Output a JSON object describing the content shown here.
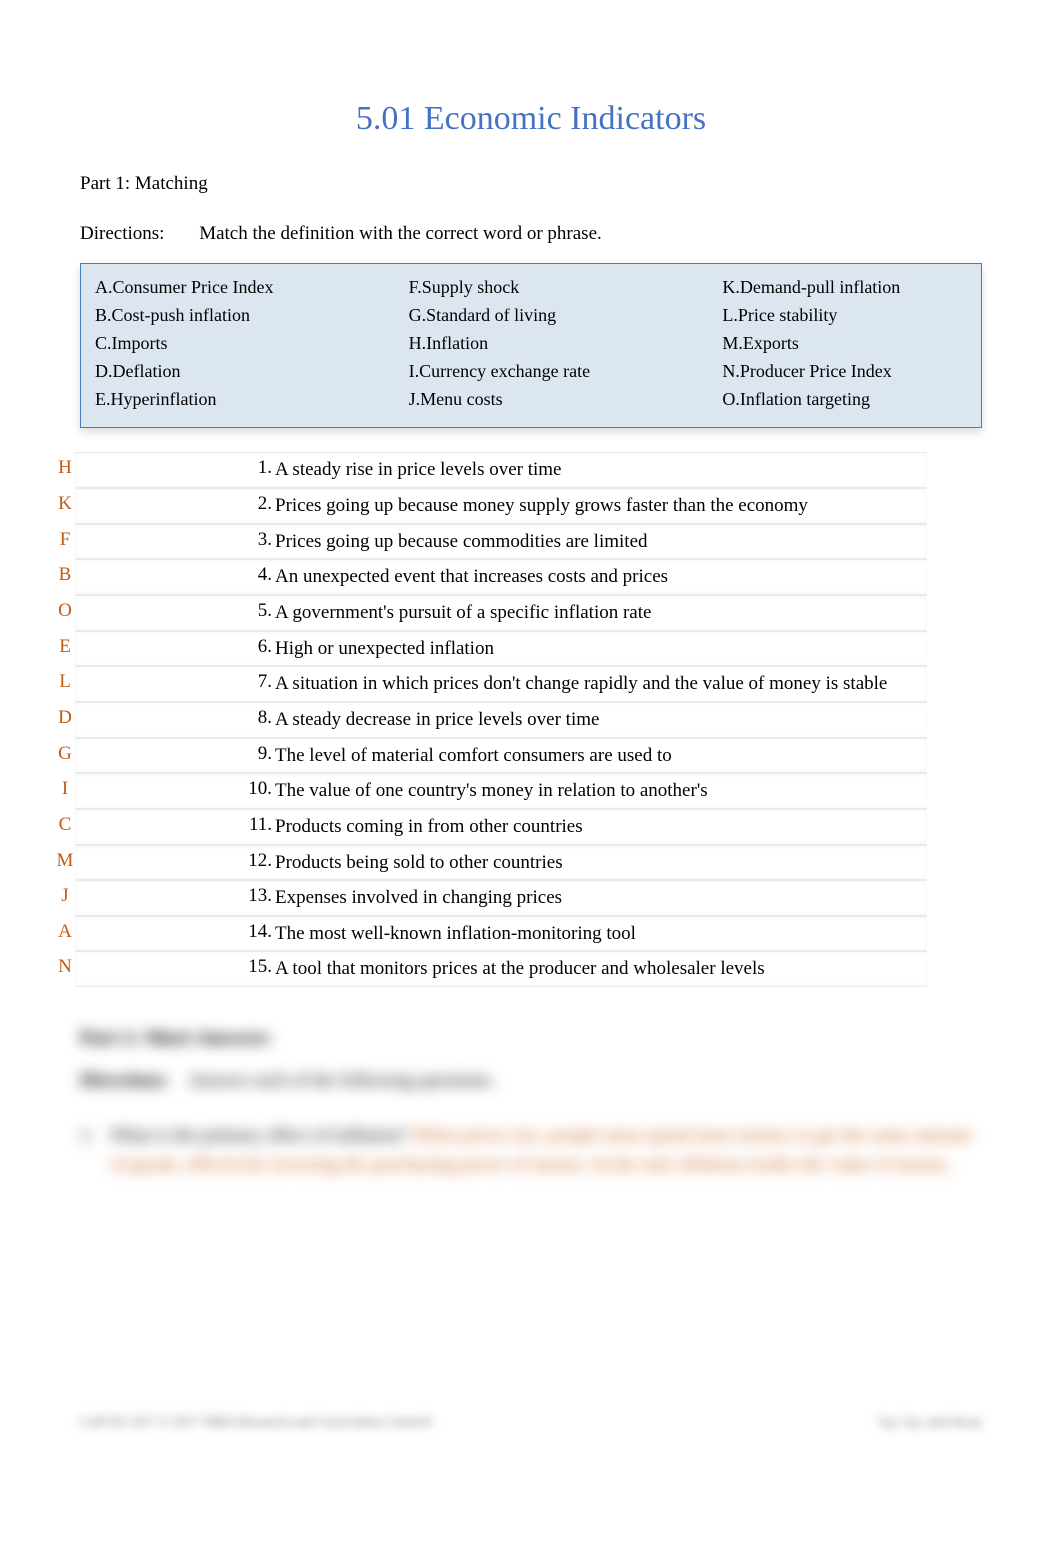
{
  "title": "5.01 Economic Indicators",
  "part1_heading": "Part 1: Matching",
  "directions_label": "Directions:",
  "directions_text": "Match the definition with the correct word or phrase.",
  "colors": {
    "title_color": "#4472c4",
    "answer_color": "#C55A11",
    "box_background": "#dce6f1",
    "box_border": "#4a7ebb",
    "body_text": "#000000",
    "page_background": "#ffffff"
  },
  "terms": {
    "col1": [
      {
        "letter": "A.",
        "term": "Consumer Price Index"
      },
      {
        "letter": "B.",
        "term": "Cost-push inflation"
      },
      {
        "letter": "C.",
        "term": "Imports"
      },
      {
        "letter": "D.",
        "term": "Deflation"
      },
      {
        "letter": "E.",
        "term": "Hyperinflation"
      }
    ],
    "col2": [
      {
        "letter": "F.",
        "term": "Supply shock"
      },
      {
        "letter": "G.",
        "term": "Standard of living"
      },
      {
        "letter": "H.",
        "term": "Inflation"
      },
      {
        "letter": "I.",
        "term": "Currency exchange rate"
      },
      {
        "letter": "J.",
        "term": "Menu costs"
      }
    ],
    "col3": [
      {
        "letter": "K.",
        "term": "Demand-pull inflation"
      },
      {
        "letter": "L.",
        "term": "Price stability"
      },
      {
        "letter": "M.",
        "term": "Exports"
      },
      {
        "letter": "N.",
        "term": "Producer Price Index"
      },
      {
        "letter": "O.",
        "term": "Inflation targeting"
      }
    ]
  },
  "matches": [
    {
      "answer": "H",
      "num": "1.",
      "def": "A steady rise in price levels over time"
    },
    {
      "answer": "K",
      "num": "2.",
      "def": "Prices going up because money supply grows faster than the economy"
    },
    {
      "answer": "F",
      "num": "3.",
      "def": "Prices going up because commodities are limited"
    },
    {
      "answer": "B",
      "num": "4.",
      "def": "An unexpected event that increases costs and prices"
    },
    {
      "answer": "O",
      "num": "5.",
      "def": "A government's pursuit of a specific inflation rate"
    },
    {
      "answer": "E",
      "num": "6.",
      "def": "High or unexpected inflation"
    },
    {
      "answer": "L",
      "num": "7.",
      "def": "A situation in which prices don't change rapidly and the value of money is stable"
    },
    {
      "answer": "D",
      "num": "8.",
      "def": "A steady decrease in price levels over time"
    },
    {
      "answer": "G",
      "num": "9.",
      "def": "The level of material comfort consumers are used to"
    },
    {
      "answer": "I",
      "num": "10.",
      "def": "The value of one country's money in relation to another's"
    },
    {
      "answer": "C",
      "num": "11.",
      "def": "Products coming in from other countries"
    },
    {
      "answer": "M",
      "num": "12.",
      "def": "Products being sold to other countries"
    },
    {
      "answer": "J",
      "num": "13.",
      "def": "Expenses involved in changing prices"
    },
    {
      "answer": "A",
      "num": "14.",
      "def": "The most well-known inflation-monitoring tool"
    },
    {
      "answer": "N",
      "num": "15.",
      "def": "A tool that monitors prices at the producer and wholesaler levels"
    }
  ],
  "blurred": {
    "heading": "Part 2: Short Answers",
    "directions_label": "Directions:",
    "directions_text": "Answer each of the following questions.",
    "q_num": "1.",
    "q_text": "What is the primary effect of inflation?",
    "a_text": "When prices rise, people must spend more money to get the same amount of goods, effectively lowering the purchasing power of money. In the end, inflation erodes the value of money.",
    "footer_left": "LAP-EC-027 © 2017 MBA Research and Curriculum Center®",
    "footer_right": "Up, Up, and Away"
  }
}
